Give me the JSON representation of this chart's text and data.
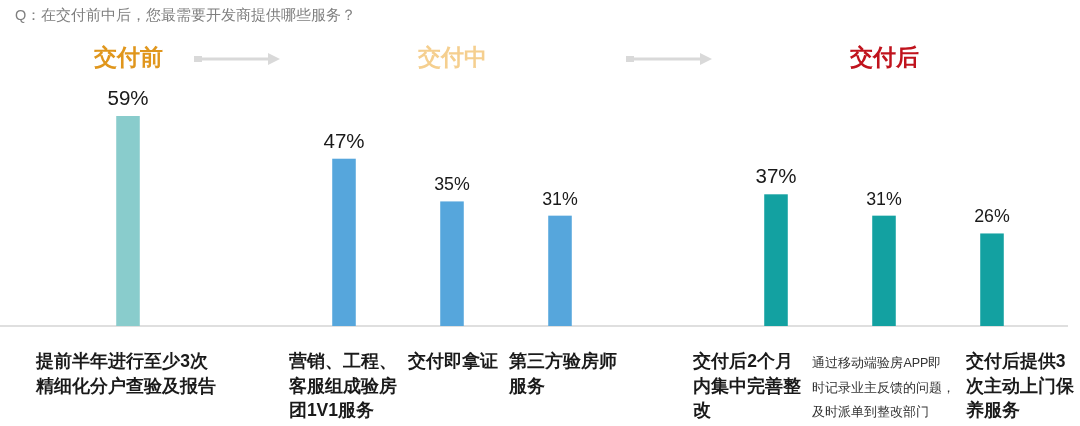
{
  "chart_data": [
    {
      "type": "bar",
      "title": "交付前",
      "annotations": [
        "Q：在交付前中后，您最需要开发商提供哪些服务？"
      ],
      "categories": [
        "提前半年进行至少3次精细化分户查验及报告"
      ],
      "values": [
        59
      ],
      "color": "#89cccc",
      "value_labels": [
        "59%"
      ]
    },
    {
      "type": "bar",
      "title": "交付中",
      "categories": [
        "营销、工程、客服组成验房团1V1服务",
        "交付即拿证",
        "第三方验房师服务"
      ],
      "values": [
        47,
        35,
        31
      ],
      "color": "#56a6dc",
      "value_labels": [
        "47%",
        "35%",
        "31%"
      ]
    },
    {
      "type": "bar",
      "title": "交付后",
      "categories": [
        "交付后2个月内集中完善整改",
        "通过移动端验房APP即时记录业主反馈的问题，及时派单到整改部门",
        "交付后提供3次主动上门保养服务"
      ],
      "values": [
        37,
        31,
        26
      ],
      "color": "#13a1a1",
      "value_labels": [
        "37%",
        "31%",
        "26%"
      ]
    }
  ]
}
